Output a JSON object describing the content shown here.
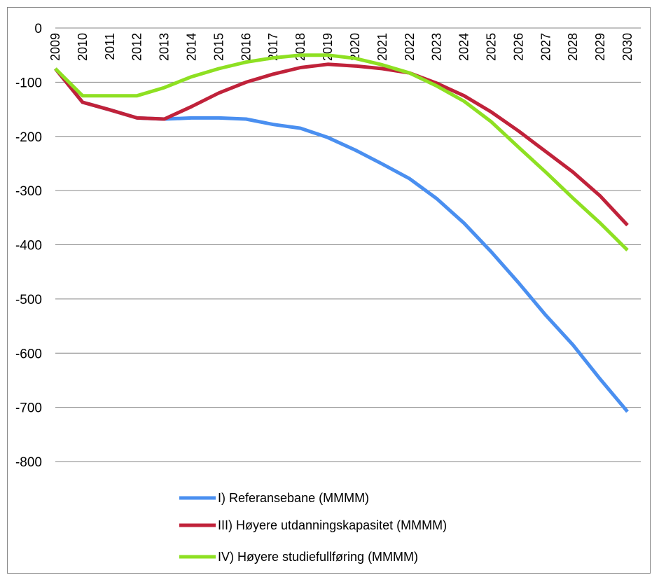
{
  "chart_data": {
    "type": "line",
    "title": "",
    "xlabel": "",
    "ylabel": "",
    "ylim": [
      -800,
      0
    ],
    "y_ticks": [
      0,
      -100,
      -200,
      -300,
      -400,
      -500,
      -600,
      -700,
      -800
    ],
    "x": [
      "2009",
      "2010",
      "2011",
      "2012",
      "2013",
      "2014",
      "2015",
      "2016",
      "2017",
      "2018",
      "2019",
      "2020",
      "2021",
      "2022",
      "2023",
      "2024",
      "2025",
      "2026",
      "2027",
      "2028",
      "2029",
      "2030"
    ],
    "grid": true,
    "legend_position": "bottom",
    "series": [
      {
        "name": "I) Referansebane (MMMM)",
        "color": "#4a8ff0",
        "values": [
          -75,
          -137,
          -151,
          -166,
          -168,
          -166,
          -166,
          -168,
          -178,
          -185,
          -202,
          -225,
          -251,
          -278,
          -315,
          -360,
          -413,
          -470,
          -530,
          -585,
          -648,
          -708
        ]
      },
      {
        "name": "III) Høyere utdanningskapasitet  (MMMM)",
        "color": "#c0223a",
        "values": [
          -75,
          -137,
          -151,
          -166,
          -168,
          -145,
          -120,
          -100,
          -85,
          -73,
          -67,
          -70,
          -75,
          -83,
          -102,
          -125,
          -155,
          -190,
          -228,
          -266,
          -310,
          -364
        ]
      },
      {
        "name": "IV) Høyere studiefullføring  (MMMM)",
        "color": "#8ee022",
        "values": [
          -75,
          -125,
          -125,
          -125,
          -110,
          -90,
          -75,
          -63,
          -55,
          -50,
          -50,
          -56,
          -68,
          -83,
          -107,
          -135,
          -173,
          -220,
          -266,
          -314,
          -360,
          -410
        ]
      }
    ]
  }
}
